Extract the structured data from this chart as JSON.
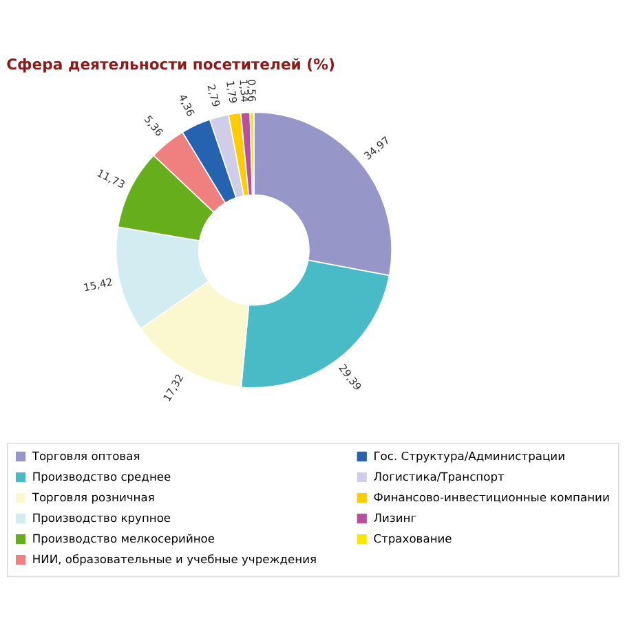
{
  "chart_data": {
    "type": "donut",
    "title": "Сфера деятельности посетителей (%)",
    "categories": [
      "Торговля оптовая",
      "Производство среднее",
      "Торговля розничная",
      "Производство крупное",
      "Производство мелкосерийное",
      "НИИ, образовательные и учебные учреждения",
      "Гос. Структура/Администрации",
      "Логистика/Транспорт",
      "Финансово-инвестиционные компании",
      "Лизинг",
      "Страхование"
    ],
    "values": [
      34.97,
      29.39,
      17.32,
      15.42,
      11.73,
      5.36,
      4.36,
      2.79,
      1.79,
      1.34,
      0.56
    ],
    "value_labels": [
      "34,97",
      "29,39",
      "17,32",
      "15,42",
      "11,73",
      "5,36",
      "4,36",
      "2,79",
      "1,79",
      "1,34",
      "0,56"
    ],
    "colors": [
      "#9696c8",
      "#48bbc6",
      "#fbf8d0",
      "#d3ecf2",
      "#66ae1c",
      "#f08080",
      "#2563b0",
      "#d0cde8",
      "#ffcc00",
      "#b94fa0",
      "#f5e800"
    ],
    "legend": "bottom"
  }
}
